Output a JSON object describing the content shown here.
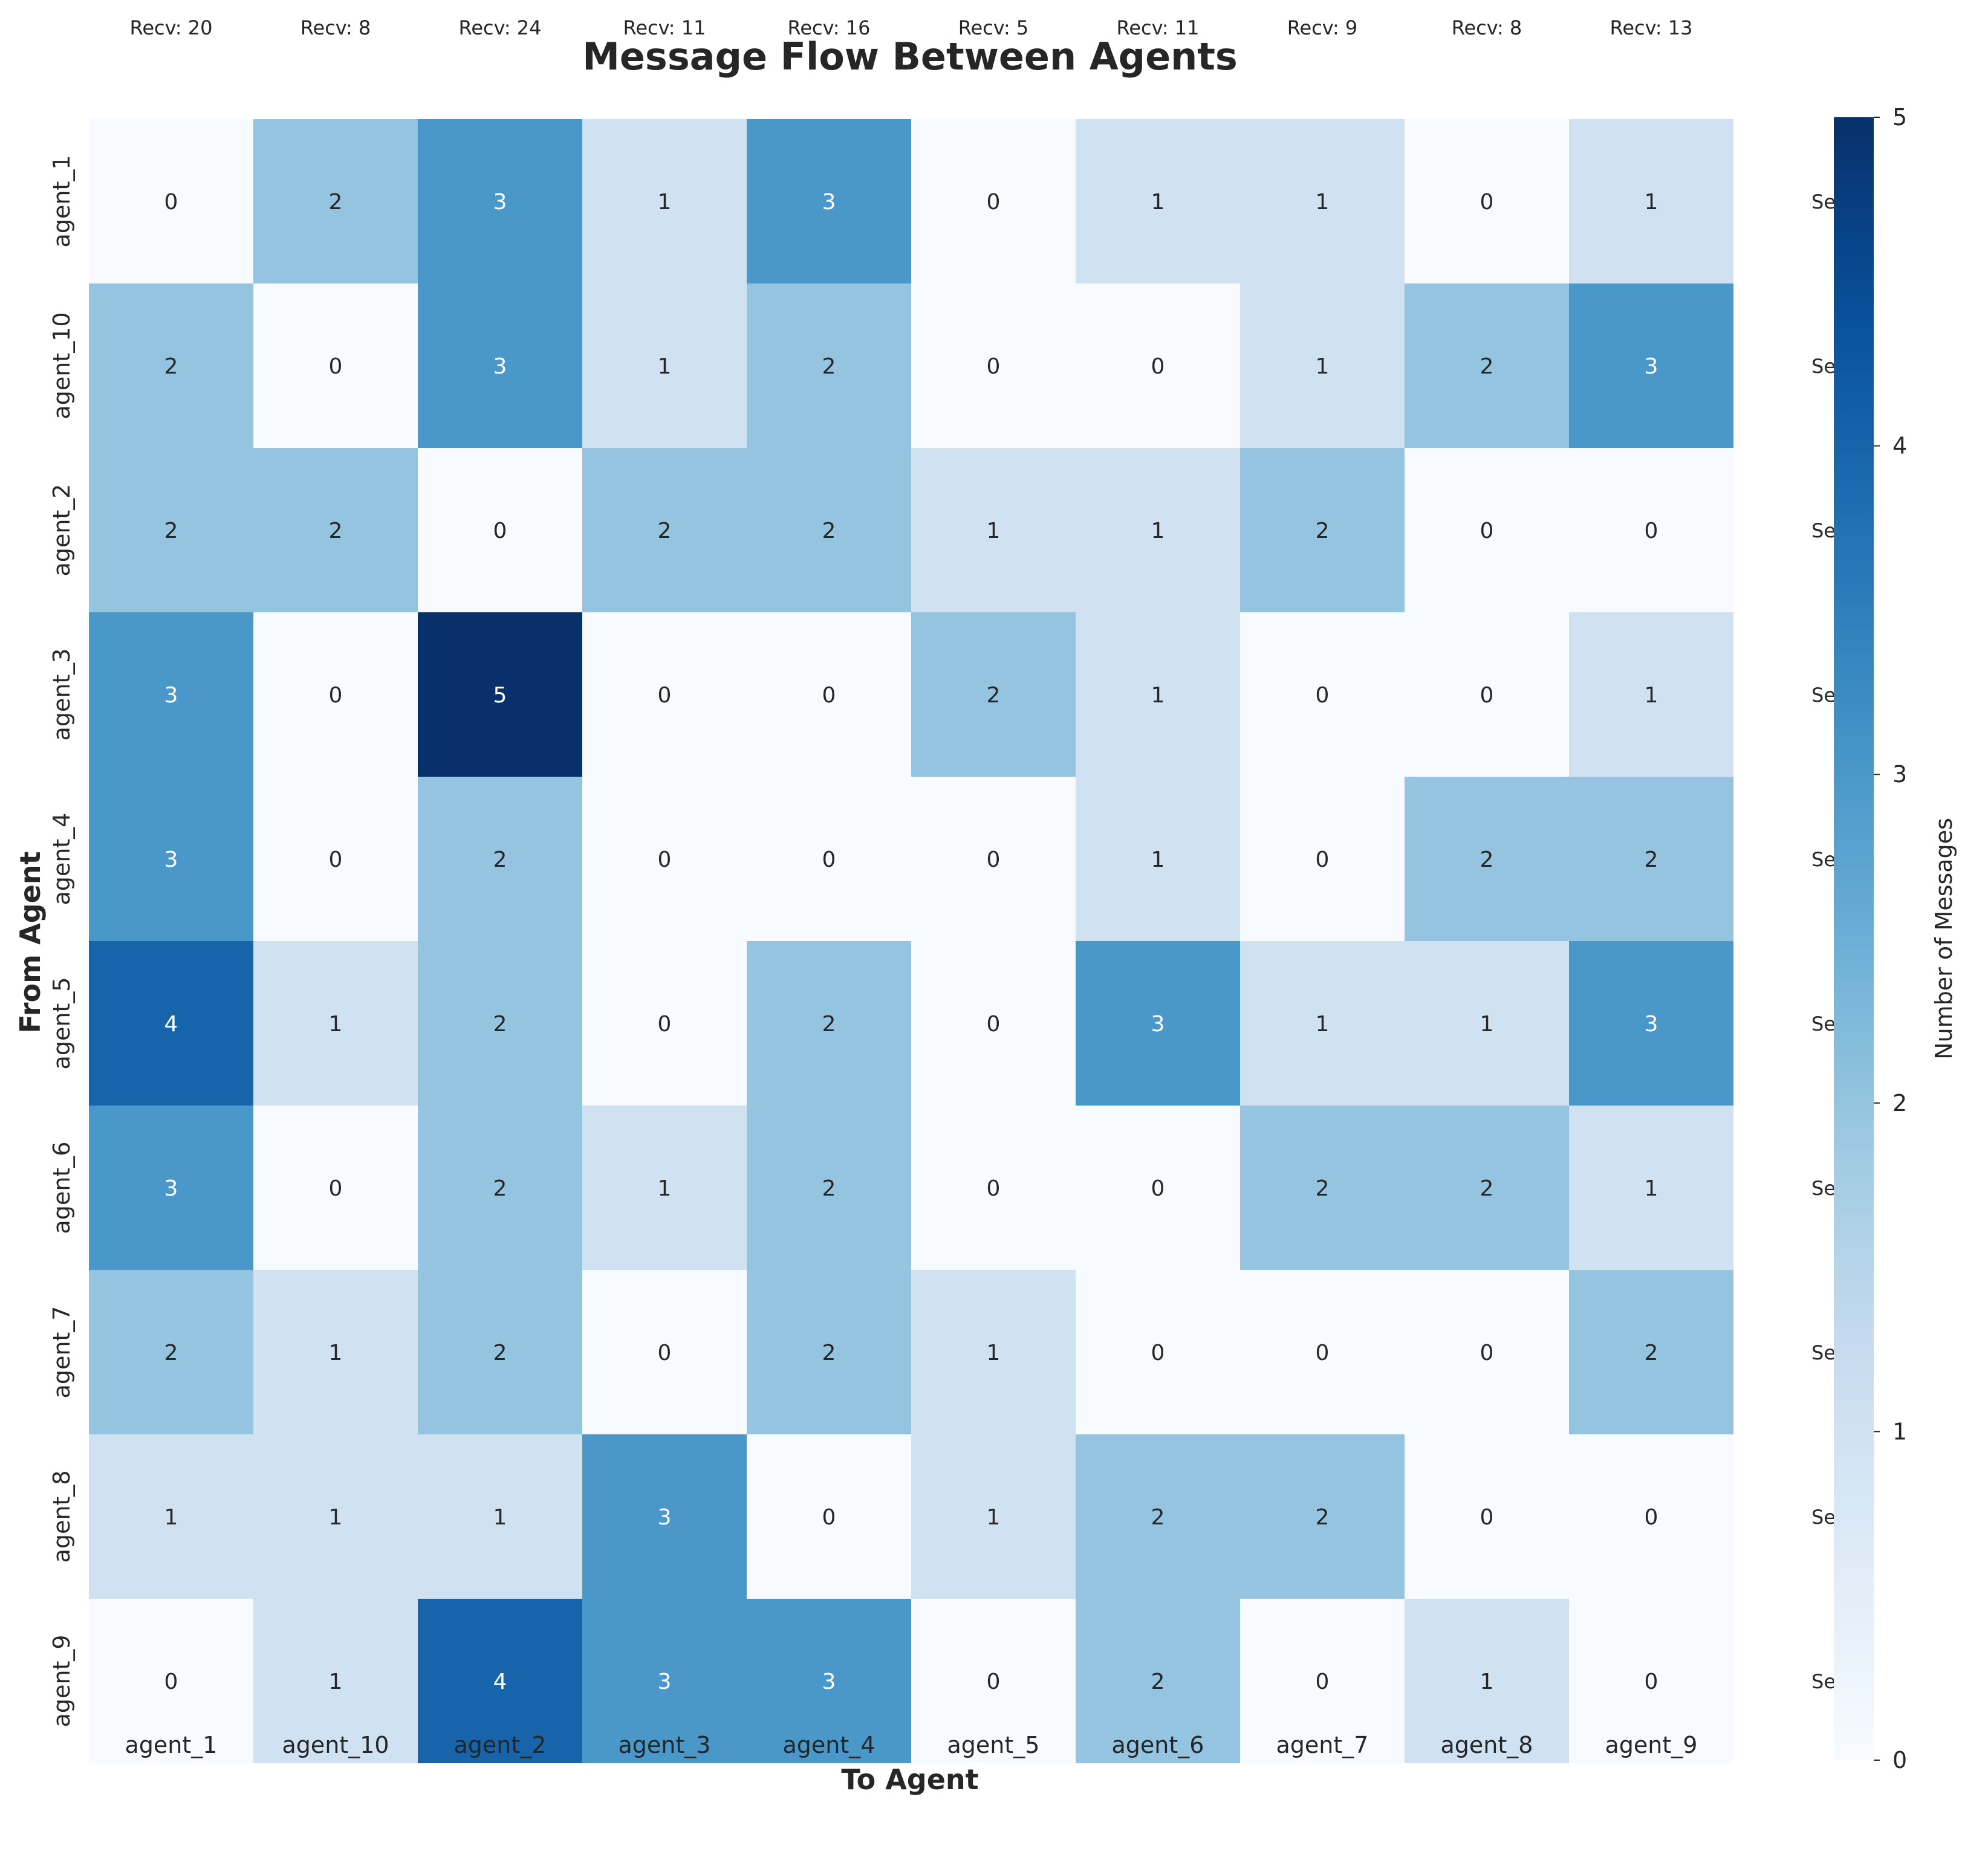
{
  "chart_data": {
    "type": "heatmap",
    "title": "Message Flow Between Agents",
    "xlabel": "To Agent",
    "ylabel": "From Agent",
    "x_categories": [
      "agent_1",
      "agent_10",
      "agent_2",
      "agent_3",
      "agent_4",
      "agent_5",
      "agent_6",
      "agent_7",
      "agent_8",
      "agent_9"
    ],
    "y_categories": [
      "agent_1",
      "agent_10",
      "agent_2",
      "agent_3",
      "agent_4",
      "agent_5",
      "agent_6",
      "agent_7",
      "agent_8",
      "agent_9"
    ],
    "values": [
      [
        0,
        2,
        3,
        1,
        3,
        0,
        1,
        1,
        0,
        1
      ],
      [
        2,
        0,
        3,
        1,
        2,
        0,
        0,
        1,
        2,
        3
      ],
      [
        2,
        2,
        0,
        2,
        2,
        1,
        1,
        2,
        0,
        0
      ],
      [
        3,
        0,
        5,
        0,
        0,
        2,
        1,
        0,
        0,
        1
      ],
      [
        3,
        0,
        2,
        0,
        0,
        0,
        1,
        0,
        2,
        2
      ],
      [
        4,
        1,
        2,
        0,
        2,
        0,
        3,
        1,
        1,
        3
      ],
      [
        3,
        0,
        2,
        1,
        2,
        0,
        0,
        2,
        2,
        1
      ],
      [
        2,
        1,
        2,
        0,
        2,
        1,
        0,
        0,
        0,
        2
      ],
      [
        1,
        1,
        1,
        3,
        0,
        1,
        2,
        2,
        0,
        0
      ],
      [
        0,
        1,
        4,
        3,
        3,
        0,
        2,
        0,
        1,
        0
      ]
    ],
    "column_annotations": [
      "Recv: 20",
      "Recv: 8",
      "Recv: 24",
      "Recv: 11",
      "Recv: 16",
      "Recv: 5",
      "Recv: 11",
      "Recv: 9",
      "Recv: 8",
      "Recv: 13"
    ],
    "row_annotations": [
      "Se",
      "Se",
      "Se",
      "Se",
      "Se",
      "Se",
      "Se",
      "Se",
      "Se",
      "Se"
    ],
    "colorbar": {
      "label": "Number of Messages",
      "range": [
        0,
        5
      ],
      "ticks": [
        "0",
        "1",
        "2",
        "3",
        "4",
        "5"
      ],
      "colormap": "Blues"
    }
  }
}
